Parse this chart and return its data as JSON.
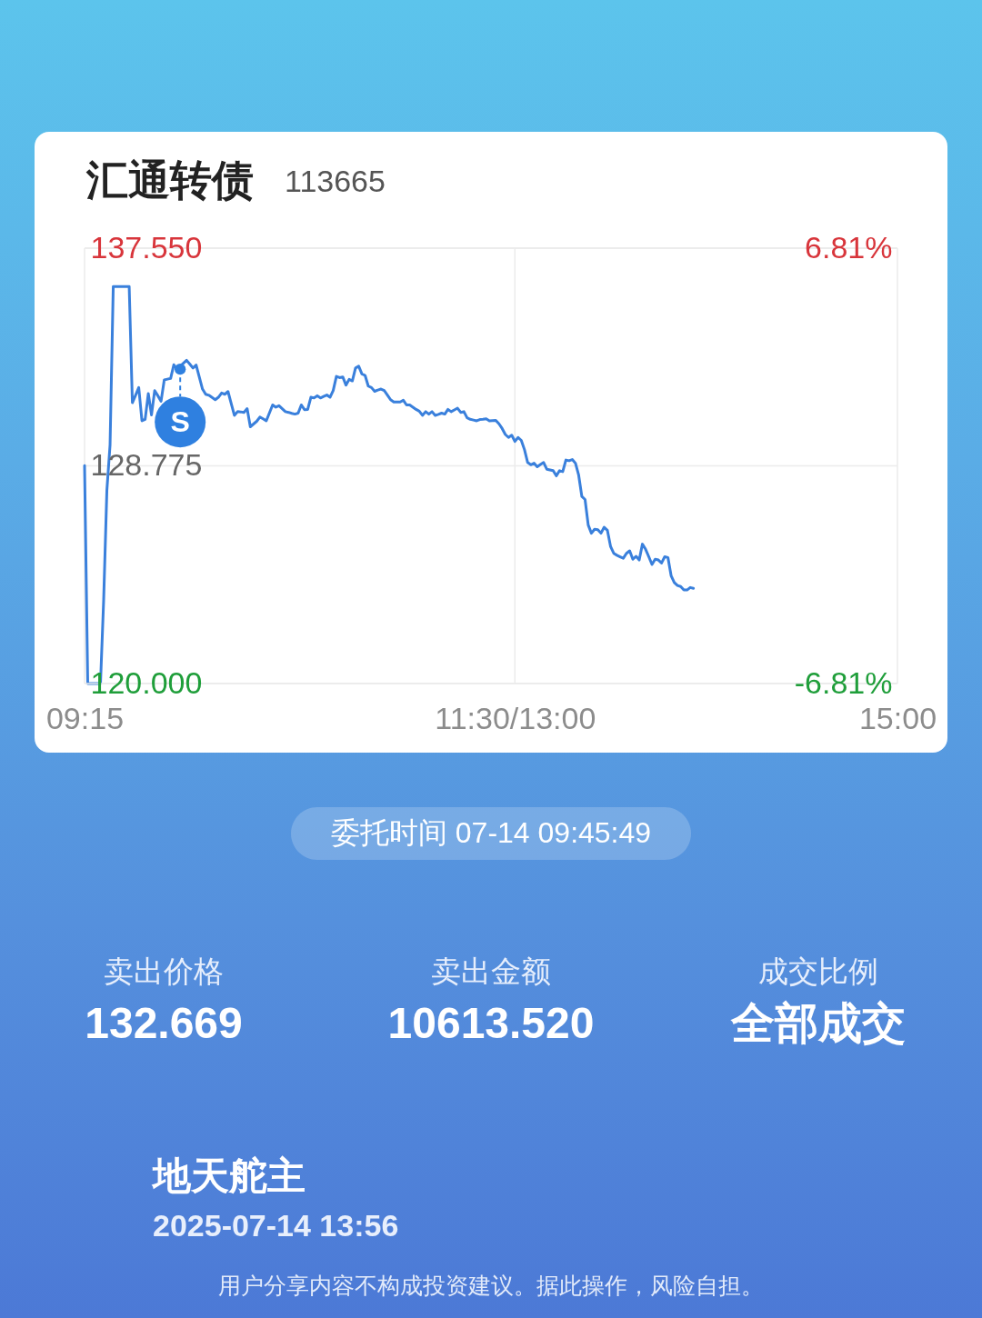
{
  "chart_data": {
    "type": "line",
    "title": "汇通转债",
    "subtitle": "113665",
    "categories": [
      "09:15",
      null,
      null,
      null,
      null,
      null,
      null,
      null,
      null,
      null,
      null,
      null,
      null,
      null,
      null,
      null,
      null,
      null,
      null,
      null,
      null,
      null,
      null,
      null,
      null,
      null,
      null,
      null,
      null,
      null,
      null,
      null,
      null,
      null,
      null,
      null,
      null,
      null,
      null,
      null,
      null,
      null,
      null,
      null,
      null,
      null,
      null,
      null,
      null,
      null,
      null,
      null,
      null,
      null,
      null,
      null,
      null,
      null,
      null,
      null,
      null,
      null,
      null,
      null,
      null,
      null,
      null,
      null,
      null,
      null,
      null,
      null,
      null,
      null,
      null,
      null,
      null,
      null,
      null,
      null,
      null,
      null,
      null,
      null,
      null,
      null,
      null,
      null,
      null,
      null,
      null,
      null,
      null,
      null,
      null,
      null,
      null,
      null,
      null,
      null,
      null,
      null,
      null,
      null,
      null,
      null,
      null,
      null,
      null,
      null,
      null,
      null,
      null,
      null,
      null,
      null,
      null,
      null,
      null,
      null,
      null,
      null,
      null,
      null,
      null,
      null,
      null,
      null,
      null,
      null,
      null,
      null,
      null,
      null,
      null,
      "11:30/13:00",
      null,
      null,
      null,
      null,
      null,
      null,
      null,
      null,
      null,
      null,
      null,
      null,
      null,
      null,
      null,
      null,
      null,
      null,
      null,
      null,
      null,
      null,
      null,
      null,
      null,
      null,
      null,
      null,
      null,
      null,
      null,
      null,
      null,
      null,
      null,
      null,
      null,
      null,
      null,
      null,
      null,
      null,
      null,
      null,
      null,
      null,
      null,
      null,
      null,
      null,
      null,
      null,
      null,
      null,
      null,
      null,
      null,
      null,
      null,
      null,
      null,
      null,
      null,
      null,
      null,
      null,
      null,
      null,
      null,
      null,
      null,
      null,
      null,
      null,
      null,
      null,
      null,
      null,
      null,
      null,
      null,
      null,
      null,
      null,
      null,
      null,
      null,
      null,
      null,
      null,
      null,
      null,
      null,
      null,
      null,
      null,
      null,
      null,
      null,
      null,
      null,
      null,
      null,
      null,
      null,
      null,
      null,
      null,
      null,
      null,
      null,
      null,
      null,
      null,
      null,
      null,
      null,
      null,
      null,
      "15:00"
    ],
    "series": [
      {
        "color": "#3a80dc",
        "values": [
          128.78,
          120.0,
          120.0,
          120.0,
          120.0,
          120.0,
          123.4,
          127.79,
          129.62,
          136.0,
          136.0,
          136.0,
          136.0,
          136.0,
          136.0,
          131.32,
          131.62,
          131.93,
          130.59,
          130.65,
          131.69,
          130.83,
          131.81,
          131.6,
          131.38,
          132.24,
          132.27,
          132.3,
          132.85,
          132.66,
          132.79,
          132.91,
          133.03,
          132.88,
          132.72,
          132.84,
          132.35,
          131.87,
          131.66,
          131.62,
          131.53,
          131.44,
          131.54,
          131.71,
          131.66,
          131.77,
          131.29,
          130.81,
          130.96,
          130.95,
          130.93,
          131.08,
          130.35,
          130.46,
          130.57,
          130.74,
          130.67,
          130.59,
          130.91,
          131.23,
          131.14,
          131.2,
          131.08,
          130.96,
          130.93,
          130.89,
          130.86,
          130.9,
          131.23,
          131.04,
          131.05,
          131.54,
          131.51,
          131.6,
          131.51,
          131.57,
          131.63,
          131.54,
          131.81,
          132.38,
          132.33,
          132.36,
          132.03,
          132.26,
          132.2,
          132.72,
          132.79,
          132.48,
          132.42,
          131.99,
          131.93,
          131.78,
          131.83,
          131.87,
          131.81,
          131.63,
          131.44,
          131.35,
          131.35,
          131.35,
          131.42,
          131.23,
          131.23,
          131.14,
          131.05,
          130.98,
          130.81,
          130.96,
          130.86,
          130.96,
          130.81,
          130.85,
          130.9,
          130.86,
          131.05,
          130.96,
          131.03,
          131.1,
          130.93,
          130.96,
          130.71,
          130.65,
          130.62,
          130.59,
          130.64,
          130.65,
          130.67,
          130.59,
          130.6,
          130.61,
          130.47,
          130.28,
          130.04,
          129.92,
          130.01,
          129.76,
          129.92,
          129.8,
          129.43,
          128.91,
          128.82,
          128.88,
          128.74,
          128.83,
          128.91,
          128.64,
          128.61,
          128.58,
          128.37,
          128.58,
          128.54,
          129.01,
          128.98,
          129.03,
          128.88,
          128.4,
          127.54,
          127.42,
          126.39,
          126.06,
          126.22,
          126.2,
          126.06,
          126.3,
          126.18,
          125.53,
          125.25,
          125.17,
          125.11,
          125.05,
          125.25,
          125.35,
          125.01,
          125.13,
          124.98,
          125.62,
          125.41,
          125.11,
          124.8,
          125.01,
          124.98,
          124.86,
          125.11,
          125.08,
          124.35,
          124.07,
          123.95,
          123.91,
          123.77,
          123.77,
          123.87,
          123.84,
          null,
          null,
          null,
          null,
          null,
          null,
          null,
          null,
          null,
          null,
          null,
          null,
          null,
          null,
          null,
          null,
          null,
          null,
          null,
          null,
          null,
          null,
          null,
          null,
          null,
          null,
          null,
          null,
          null,
          null,
          null,
          null,
          null,
          null,
          null,
          null,
          null,
          null,
          null,
          null,
          null,
          null,
          null,
          null,
          null,
          null,
          null,
          null,
          null,
          null,
          null,
          null,
          null,
          null,
          null,
          null,
          null,
          null,
          null,
          null,
          null,
          null,
          null,
          null
        ]
      },
      {
        "type": "scatter",
        "name": "S",
        "color": "#2f80e0",
        "values": [
          null,
          null,
          null,
          null,
          null,
          null,
          null,
          null,
          null,
          null,
          null,
          null,
          null,
          null,
          null,
          null,
          null,
          null,
          null,
          null,
          null,
          null,
          null,
          null,
          null,
          null,
          null,
          null,
          null,
          null,
          132.67,
          null,
          null,
          null,
          null,
          null,
          null,
          null,
          null,
          null,
          null,
          null,
          null,
          null,
          null,
          null,
          null,
          null,
          null,
          null,
          null,
          null,
          null,
          null,
          null,
          null,
          null,
          null,
          null,
          null,
          null,
          null,
          null,
          null,
          null,
          null,
          null,
          null,
          null,
          null,
          null,
          null,
          null,
          null,
          null,
          null,
          null,
          null,
          null,
          null,
          null,
          null,
          null,
          null,
          null,
          null,
          null,
          null,
          null,
          null,
          null,
          null,
          null,
          null,
          null,
          null,
          null,
          null,
          null,
          null,
          null,
          null,
          null,
          null,
          null,
          null,
          null,
          null,
          null,
          null,
          null,
          null,
          null,
          null,
          null,
          null,
          null,
          null,
          null,
          null,
          null,
          null,
          null,
          null,
          null,
          null,
          null,
          null,
          null,
          null,
          null,
          null,
          null,
          null,
          null,
          null,
          null,
          null,
          null,
          null,
          null,
          null,
          null,
          null,
          null,
          null,
          null,
          null,
          null,
          null,
          null,
          null,
          null,
          null,
          null,
          null,
          null,
          null,
          null,
          null,
          null,
          null,
          null,
          null,
          null,
          null,
          null,
          null,
          null,
          null,
          null,
          null,
          null,
          null,
          null,
          null,
          null,
          null,
          null,
          null,
          null,
          null,
          null,
          null,
          null,
          null,
          null,
          null,
          null,
          null,
          null,
          null,
          null,
          null,
          null,
          null,
          null,
          null,
          null,
          null,
          null,
          null,
          null,
          null,
          null,
          null,
          null,
          null,
          null,
          null,
          null,
          null,
          null,
          null,
          null,
          null,
          null,
          null,
          null,
          null,
          null,
          null,
          null,
          null,
          null,
          null,
          null,
          null,
          null,
          null,
          null,
          null,
          null,
          null,
          null,
          null,
          null,
          null,
          null,
          null,
          null,
          null,
          null,
          null,
          null,
          null,
          null,
          null,
          null,
          null,
          null,
          null,
          null,
          null,
          null,
          null
        ]
      }
    ],
    "ylim": [
      120,
      137.55
    ],
    "yticks": [
      {
        "value": 120,
        "label": "120.000"
      },
      {
        "value": 128.775,
        "label": "128.775"
      },
      {
        "value": 137.55,
        "label": "137.550"
      }
    ],
    "y2lim": [
      -6.81,
      6.81
    ],
    "y2ticks": [
      {
        "value": -6.81,
        "label": "-6.81%"
      },
      {
        "value": 6.81,
        "label": "6.81%"
      }
    ],
    "grid": true,
    "annotations": [
      "委托时间 07-14 09:45:49",
      "卖出价格",
      "132.669",
      "卖出金额",
      "10613.520",
      "成交比例",
      "全部成交",
      "地天舵主",
      "2025-07-14 13:56",
      "用户分享内容不构成投资建议。据此操作，风险自担。"
    ]
  }
}
